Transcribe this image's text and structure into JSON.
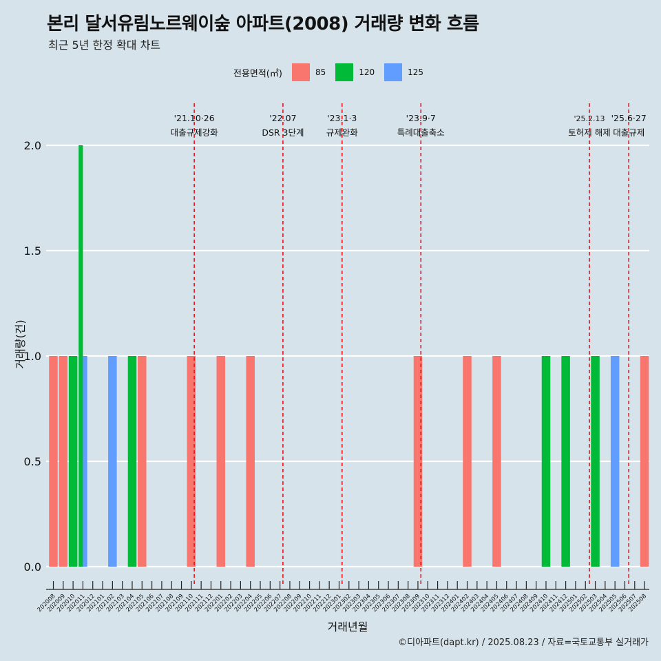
{
  "header": {
    "title": "본리 달서유림노르웨이숲 아파트(2008) 거래량 변화 흐름",
    "subtitle": "최근 5년 한정 확대 차트"
  },
  "legend": {
    "title": "전용면적(㎡)",
    "items": [
      {
        "label": "85",
        "color": "#F8766D"
      },
      {
        "label": "120",
        "color": "#00BA38"
      },
      {
        "label": "125",
        "color": "#619CFF"
      }
    ]
  },
  "caption": "©디아파트(dapt.kr) / 2025.08.23 / 자료=국토교통부 실거래가",
  "chart_data": {
    "type": "bar",
    "title": "본리 달서유림노르웨이숲 아파트(2008) 거래량 변화 흐름",
    "xlabel": "거래년월",
    "ylabel": "거래량(건)",
    "ylim": [
      0,
      2
    ],
    "yticks": [
      "0.0",
      "0.5",
      "1.0",
      "1.5",
      "2.0"
    ],
    "categories": [
      "202008",
      "202009",
      "202010",
      "202011",
      "202012",
      "202101",
      "202102",
      "202103",
      "202104",
      "202105",
      "202106",
      "202107",
      "202108",
      "202109",
      "202110",
      "202111",
      "202112",
      "202201",
      "202202",
      "202203",
      "202204",
      "202205",
      "202206",
      "202207",
      "202208",
      "202209",
      "202210",
      "202211",
      "202212",
      "202301",
      "202302",
      "202303",
      "202304",
      "202305",
      "202306",
      "202307",
      "202308",
      "202309",
      "202310",
      "202311",
      "202312",
      "202401",
      "202402",
      "202403",
      "202404",
      "202405",
      "202406",
      "202407",
      "202408",
      "202409",
      "202410",
      "202411",
      "202412",
      "202501",
      "202502",
      "202503",
      "202504",
      "202505",
      "202506",
      "202507",
      "202508"
    ],
    "series": [
      {
        "name": "85",
        "color": "#F8766D",
        "values": [
          1,
          1,
          0,
          0,
          0,
          0,
          0,
          0,
          0,
          1,
          0,
          0,
          0,
          0,
          1,
          0,
          0,
          1,
          0,
          0,
          1,
          0,
          0,
          0,
          0,
          0,
          0,
          0,
          0,
          0,
          0,
          0,
          0,
          0,
          0,
          0,
          0,
          1,
          0,
          0,
          0,
          0,
          1,
          0,
          0,
          1,
          0,
          0,
          0,
          0,
          0,
          0,
          0,
          0,
          0,
          0,
          0,
          0,
          0,
          0,
          1
        ]
      },
      {
        "name": "120",
        "color": "#00BA38",
        "values": [
          0,
          0,
          1,
          2,
          0,
          0,
          0,
          0,
          1,
          0,
          0,
          0,
          0,
          0,
          0,
          0,
          0,
          0,
          0,
          0,
          0,
          0,
          0,
          0,
          0,
          0,
          0,
          0,
          0,
          0,
          0,
          0,
          0,
          0,
          0,
          0,
          0,
          0,
          0,
          0,
          0,
          0,
          0,
          0,
          0,
          0,
          0,
          0,
          0,
          0,
          1,
          0,
          1,
          0,
          0,
          1,
          0,
          0,
          0,
          0,
          0
        ]
      },
      {
        "name": "125",
        "color": "#619CFF",
        "values": [
          0,
          0,
          0,
          1,
          0,
          0,
          1,
          0,
          0,
          0,
          0,
          0,
          0,
          0,
          0,
          0,
          0,
          0,
          0,
          0,
          0,
          0,
          0,
          0,
          0,
          0,
          0,
          0,
          0,
          0,
          0,
          0,
          0,
          0,
          0,
          0,
          0,
          0,
          0,
          0,
          0,
          0,
          0,
          0,
          0,
          0,
          0,
          0,
          0,
          0,
          0,
          0,
          0,
          0,
          0,
          0,
          0,
          1,
          0,
          0,
          0
        ]
      }
    ],
    "annotations": [
      {
        "position": 14.3,
        "line1": "'21.10·26",
        "line2": "대출규제강화"
      },
      {
        "position": 23.3,
        "line1": "'22.07",
        "line2": "DSR 3단계"
      },
      {
        "position": 29.3,
        "line1": "'23.1·3",
        "line2": "규제완화"
      },
      {
        "position": 37.3,
        "line1": "'23.9·7",
        "line2": "특례대출축소"
      },
      {
        "position": 54.4,
        "line1": "'25.2.13",
        "line2": "토허제 해제"
      },
      {
        "position": 58.4,
        "line1": "'25.6·27",
        "line2": "대출규제"
      }
    ]
  }
}
